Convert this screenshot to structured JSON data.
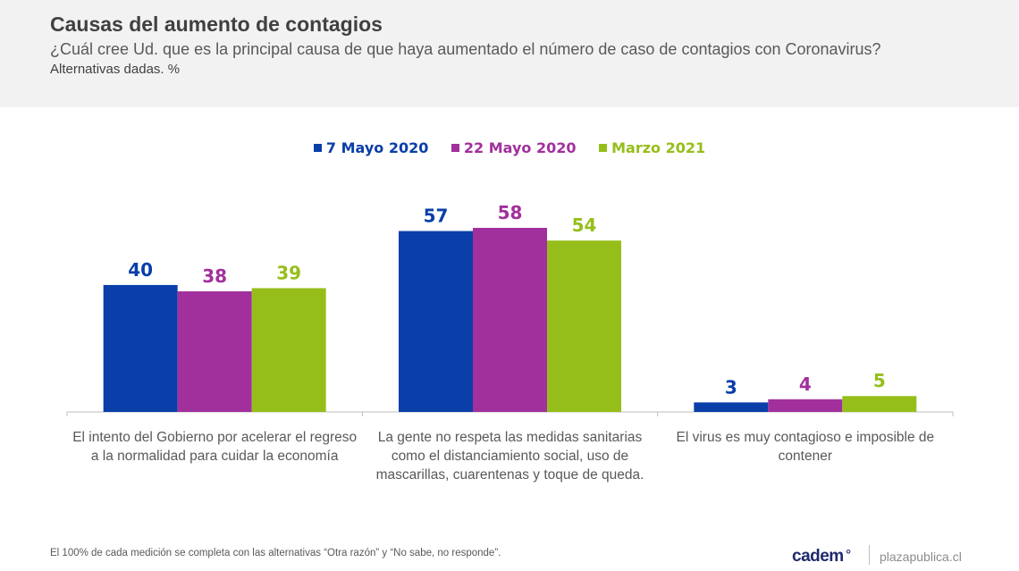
{
  "header": {
    "title": "Causas del aumento de contagios",
    "subtitle": "¿Cuál cree Ud. que es la principal causa de que haya aumentado el número de caso de contagios con Coronavirus?",
    "note": "Alternativas dadas. %"
  },
  "chart_data": {
    "type": "bar",
    "categories": [
      [
        "El intento del Gobierno por acelerar el regreso",
        "a la normalidad para cuidar la economía"
      ],
      [
        "La gente no respeta las medidas sanitarias",
        "como el distanciamiento social, uso de",
        "mascarillas, cuarentenas y toque de queda."
      ],
      [
        "El virus es muy contagioso e imposible de",
        "contener"
      ]
    ],
    "series": [
      {
        "name": "7 Mayo 2020",
        "color": "#0a3ea8",
        "values": [
          40,
          57,
          3
        ]
      },
      {
        "name": "22 Mayo 2020",
        "color": "#a1309c",
        "values": [
          38,
          58,
          4
        ]
      },
      {
        "name": "Marzo 2021",
        "color": "#96be1a",
        "values": [
          39,
          54,
          5
        ]
      }
    ],
    "ylim": [
      0,
      58
    ],
    "legend": "top-center",
    "grid": false
  },
  "footer": {
    "footnote": "El 100% de cada medición se completa con las alternativas “Otra razón” y “No sabe, no responde”.",
    "brand": "cadem",
    "site": "plazapublica.cl"
  }
}
